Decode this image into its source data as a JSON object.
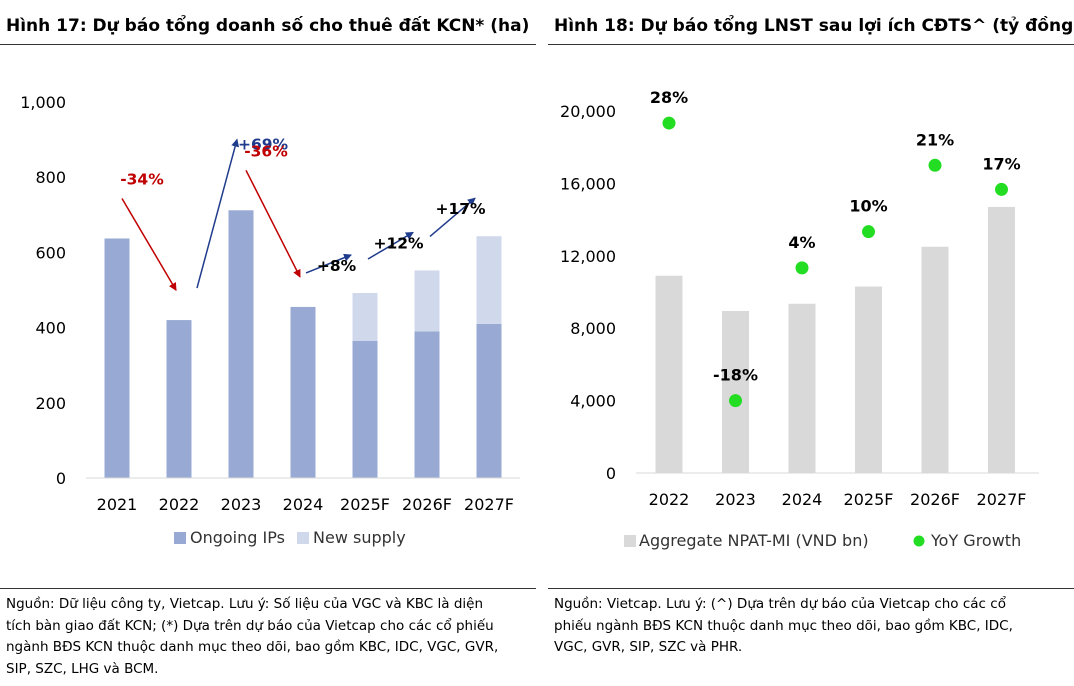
{
  "left": {
    "title": "Hình 17: Dự báo tổng doanh số cho thuê đất KCN* (ha)",
    "note_lines": [
      "Nguồn: Dữ liệu công ty, Vietcap. Lưu ý: Số liệu của VGC và KBC là diện",
      "tích bàn giao đất KCN; (*) Dựa trên dự báo của Vietcap cho các cổ phiếu",
      "ngành BĐS KCN thuộc danh mục theo dõi, bao gồm KBC, IDC, VGC, GVR,",
      "SIP, SZC, LHG và BCM."
    ]
  },
  "right": {
    "title": "Hình 18: Dự báo tổng LNST sau lợi ích CĐTS^ (tỷ đồng)",
    "note_lines": [
      "Nguồn: Vietcap. Lưu ý: (^) Dựa trên dự báo của Vietcap cho các cổ",
      "phiếu ngành BĐS KCN thuộc danh mục theo dõi, bao gồm KBC, IDC,",
      "VGC, GVR, SIP, SZC và PHR."
    ]
  },
  "colors": {
    "ongoing": "#98AAD3",
    "new_supply": "#D0D8EC",
    "npat": "#D9D9D9",
    "growth": "#22DD22",
    "arrow_down": "#C00000",
    "arrow_up": "#1F3B8C",
    "axis_text": "#000000"
  },
  "chart_data": [
    {
      "type": "bar",
      "stacked": true,
      "title": "Hình 17: Dự báo tổng doanh số cho thuê đất KCN* (ha)",
      "categories": [
        "2021",
        "2022",
        "2023",
        "2024",
        "2025F",
        "2026F",
        "2027F"
      ],
      "series": [
        {
          "name": "Ongoing IPs",
          "values": [
            637,
            420,
            712,
            455,
            365,
            390,
            410
          ]
        },
        {
          "name": "New supply",
          "values": [
            0,
            0,
            0,
            0,
            127,
            162,
            233
          ]
        }
      ],
      "yticks": [
        "0",
        "200",
        "400",
        "600",
        "800",
        "1,000"
      ],
      "ylim": [
        0,
        1000
      ],
      "grid": false,
      "legend": "bottom",
      "annotations": [
        {
          "label": "-34%",
          "direction": "down",
          "from": 0,
          "to": 1
        },
        {
          "label": "+69%",
          "direction": "up",
          "from": 1,
          "to": 2
        },
        {
          "label": "-36%",
          "direction": "down",
          "from": 2,
          "to": 3
        },
        {
          "label": "+8%",
          "direction": "up",
          "from": 3,
          "to": 4
        },
        {
          "label": "+12%",
          "direction": "up",
          "from": 4,
          "to": 5
        },
        {
          "label": "+17%",
          "direction": "up",
          "from": 5,
          "to": 6
        }
      ]
    },
    {
      "type": "bar",
      "title": "Hình 18: Dự báo tổng LNST sau lợi ích CĐTS^ (tỷ đồng)",
      "categories": [
        "2022",
        "2023",
        "2024",
        "2025F",
        "2026F",
        "2027F"
      ],
      "series": [
        {
          "name": "Aggregate NPAT-MI (VND bn)",
          "type": "bar",
          "values": [
            10900,
            8950,
            9350,
            10300,
            12500,
            14700
          ]
        },
        {
          "name": "YoY Growth",
          "type": "scatter",
          "values": [
            28,
            -18,
            4,
            10,
            21,
            17
          ],
          "labels": [
            "28%",
            "-18%",
            "4%",
            "10%",
            "21%",
            "17%"
          ]
        }
      ],
      "yticks": [
        "0",
        "4,000",
        "8,000",
        "12,000",
        "16,000",
        "20,000"
      ],
      "ylim": [
        0,
        20000
      ],
      "growth_axis_range": [
        -30,
        30
      ],
      "grid": false,
      "legend": "bottom"
    }
  ]
}
